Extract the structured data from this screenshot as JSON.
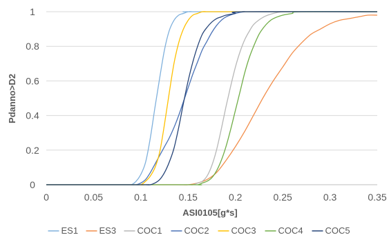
{
  "chart_data": {
    "type": "line",
    "title": "",
    "xlabel": "ASI0105[g*s]",
    "ylabel": "Pdanno>D2",
    "xlim": [
      0,
      0.35
    ],
    "ylim": [
      0,
      1
    ],
    "x_ticks": [
      "0",
      "0.05",
      "0.1",
      "0.15",
      "0.2",
      "0.25",
      "0.3",
      "0.35"
    ],
    "y_ticks": [
      "0",
      "0.2",
      "0.4",
      "0.6",
      "0.8",
      "1"
    ],
    "grid": "horizontal",
    "legend_position": "bottom",
    "series": [
      {
        "name": "ES1",
        "color": "#7fb0dc",
        "x": [
          0.085,
          0.09,
          0.095,
          0.1,
          0.105,
          0.11,
          0.115,
          0.12,
          0.125,
          0.13,
          0.135,
          0.14,
          0.145,
          0.15,
          0.155,
          0.16
        ],
        "y": [
          0.0,
          0.0,
          0.02,
          0.06,
          0.13,
          0.27,
          0.45,
          0.62,
          0.78,
          0.89,
          0.95,
          0.98,
          0.99,
          1.0,
          1.0,
          1.0
        ]
      },
      {
        "name": "ES3",
        "color": "#f28e4b",
        "x": [
          0.13,
          0.15,
          0.16,
          0.17,
          0.18,
          0.19,
          0.2,
          0.21,
          0.22,
          0.23,
          0.24,
          0.25,
          0.26,
          0.27,
          0.28,
          0.29,
          0.3,
          0.31,
          0.32,
          0.33,
          0.34,
          0.35
        ],
        "y": [
          0.0,
          0.0,
          0.01,
          0.03,
          0.07,
          0.14,
          0.22,
          0.31,
          0.41,
          0.51,
          0.6,
          0.68,
          0.76,
          0.82,
          0.87,
          0.9,
          0.93,
          0.95,
          0.96,
          0.97,
          0.98,
          0.98
        ]
      },
      {
        "name": "COC1",
        "color": "#b7b7b7",
        "x": [
          0.13,
          0.15,
          0.155,
          0.16,
          0.165,
          0.17,
          0.175,
          0.18,
          0.185,
          0.19,
          0.195,
          0.2,
          0.205,
          0.21,
          0.215,
          0.22,
          0.23,
          0.24,
          0.25,
          0.26
        ],
        "y": [
          0.0,
          0.0,
          0.0,
          0.01,
          0.02,
          0.05,
          0.11,
          0.2,
          0.32,
          0.45,
          0.57,
          0.68,
          0.77,
          0.84,
          0.89,
          0.93,
          0.97,
          0.99,
          1.0,
          1.0
        ]
      },
      {
        "name": "COC2",
        "color": "#4a72b7",
        "x": [
          0.09,
          0.095,
          0.1,
          0.105,
          0.11,
          0.115,
          0.12,
          0.125,
          0.13,
          0.135,
          0.14,
          0.145,
          0.15,
          0.155,
          0.16,
          0.165,
          0.17,
          0.175,
          0.18,
          0.185,
          0.19,
          0.2,
          0.21,
          0.22
        ],
        "y": [
          0.0,
          0.0,
          0.01,
          0.03,
          0.07,
          0.12,
          0.17,
          0.22,
          0.27,
          0.33,
          0.4,
          0.48,
          0.56,
          0.64,
          0.71,
          0.78,
          0.83,
          0.88,
          0.92,
          0.95,
          0.97,
          0.99,
          1.0,
          1.0
        ]
      },
      {
        "name": "COC3",
        "color": "#ffc000",
        "x": [
          0.095,
          0.1,
          0.105,
          0.11,
          0.115,
          0.12,
          0.125,
          0.13,
          0.135,
          0.14,
          0.145,
          0.15,
          0.155,
          0.16,
          0.165,
          0.17,
          0.175,
          0.18
        ],
        "y": [
          0.0,
          0.0,
          0.02,
          0.05,
          0.1,
          0.19,
          0.35,
          0.53,
          0.7,
          0.82,
          0.9,
          0.95,
          0.98,
          0.99,
          1.0,
          1.0,
          1.0,
          1.0
        ]
      },
      {
        "name": "COC4",
        "color": "#70ad47",
        "x": [
          0.15,
          0.16,
          0.165,
          0.17,
          0.175,
          0.18,
          0.185,
          0.19,
          0.195,
          0.2,
          0.205,
          0.21,
          0.215,
          0.22,
          0.225,
          0.23,
          0.235,
          0.24,
          0.25,
          0.26,
          0.27
        ],
        "y": [
          0.0,
          0.0,
          0.01,
          0.02,
          0.04,
          0.08,
          0.14,
          0.22,
          0.32,
          0.43,
          0.54,
          0.65,
          0.74,
          0.81,
          0.87,
          0.91,
          0.94,
          0.96,
          0.98,
          0.99,
          1.0
        ]
      },
      {
        "name": "COC5",
        "color": "#264478",
        "x": [
          0.1,
          0.105,
          0.11,
          0.115,
          0.12,
          0.125,
          0.13,
          0.135,
          0.14,
          0.145,
          0.15,
          0.155,
          0.16,
          0.165,
          0.17,
          0.175,
          0.18,
          0.185,
          0.19,
          0.2,
          0.21
        ],
        "y": [
          0.0,
          0.0,
          0.0,
          0.01,
          0.03,
          0.07,
          0.13,
          0.21,
          0.33,
          0.47,
          0.6,
          0.71,
          0.8,
          0.87,
          0.91,
          0.94,
          0.96,
          0.97,
          0.98,
          0.99,
          1.0
        ]
      }
    ]
  }
}
